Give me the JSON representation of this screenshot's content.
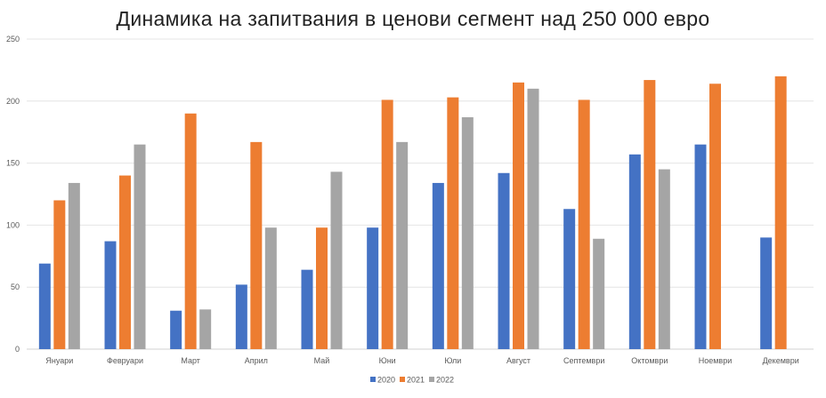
{
  "chart_data": {
    "type": "bar",
    "title": "Динамика на запитвания в ценови сегмент над 250 000 евро",
    "xlabel": "",
    "ylabel": "",
    "ylim": [
      0,
      250
    ],
    "yticks": [
      0,
      50,
      100,
      150,
      200,
      250
    ],
    "grid": true,
    "legend": "bottom",
    "categories": [
      "Януари",
      "Февруари",
      "Март",
      "Април",
      "Май",
      "Юни",
      "Юли",
      "Август",
      "Септември",
      "Октомври",
      "Ноември",
      "Декември"
    ],
    "series": [
      {
        "name": "2020",
        "color": "#4472C4",
        "values": [
          69,
          87,
          31,
          52,
          64,
          98,
          134,
          142,
          113,
          157,
          165,
          90
        ]
      },
      {
        "name": "2021",
        "color": "#ED7D31",
        "values": [
          120,
          140,
          190,
          167,
          98,
          201,
          203,
          215,
          201,
          217,
          214,
          220
        ]
      },
      {
        "name": "2022",
        "color": "#A5A5A5",
        "values": [
          134,
          165,
          32,
          98,
          143,
          167,
          187,
          210,
          89,
          145,
          null,
          null
        ]
      }
    ]
  }
}
